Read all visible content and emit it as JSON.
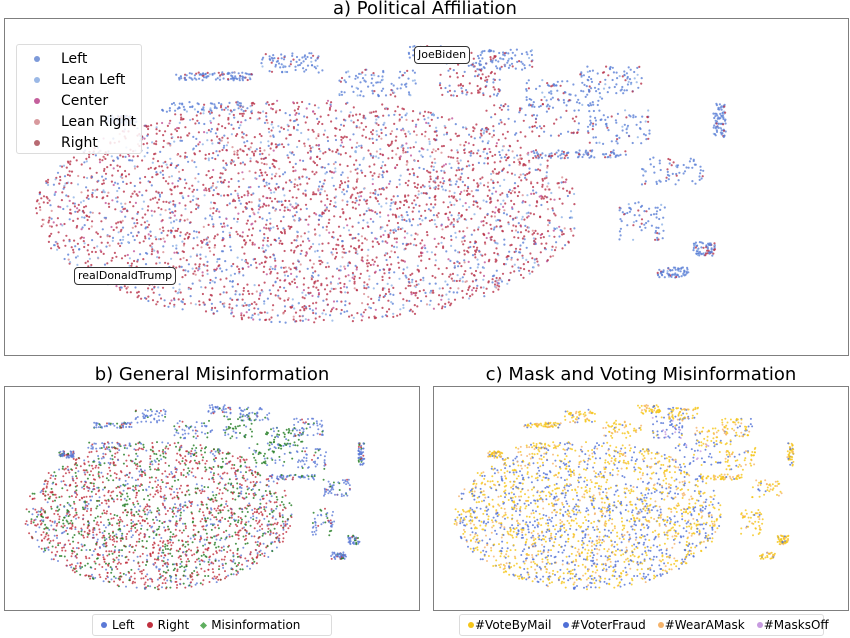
{
  "chart_data": [
    {
      "type": "scatter",
      "title": "a) Political Affiliation",
      "xlabel": "",
      "ylabel": "",
      "grid": false,
      "legend_placement": "top-left",
      "series": [
        {
          "name": "Left",
          "color": "#5b7fd6"
        },
        {
          "name": "Lean Left",
          "color": "#8fb3e6"
        },
        {
          "name": "Center",
          "color": "#c2549a"
        },
        {
          "name": "Lean Right",
          "color": "#d98e93"
        },
        {
          "name": "Right",
          "color": "#b8324a"
        }
      ],
      "annotations": [
        "JoeBiden",
        "realDonaldTrump"
      ]
    },
    {
      "type": "scatter",
      "title": "b) General Misinformation",
      "xlabel": "",
      "ylabel": "",
      "grid": false,
      "legend_placement": "bottom-center",
      "series": [
        {
          "name": "Left",
          "color": "#5b79d6",
          "marker": "circle"
        },
        {
          "name": "Right",
          "color": "#c0303f",
          "marker": "circle"
        },
        {
          "name": "Misinformation",
          "color": "#5fae5f",
          "plot_color": "#1f7a1f",
          "marker": "diamond"
        }
      ]
    },
    {
      "type": "scatter",
      "title": "c) Mask and Voting Misinformation",
      "xlabel": "",
      "ylabel": "",
      "grid": false,
      "legend_placement": "bottom-center",
      "series": [
        {
          "name": "#VoteByMail",
          "color": "#f5c518"
        },
        {
          "name": "#VoterFraud",
          "color": "#4f6fd6"
        },
        {
          "name": "#WearAMask",
          "color": "#f5b36a"
        },
        {
          "name": "#MasksOff",
          "color": "#c79be0"
        }
      ]
    }
  ]
}
